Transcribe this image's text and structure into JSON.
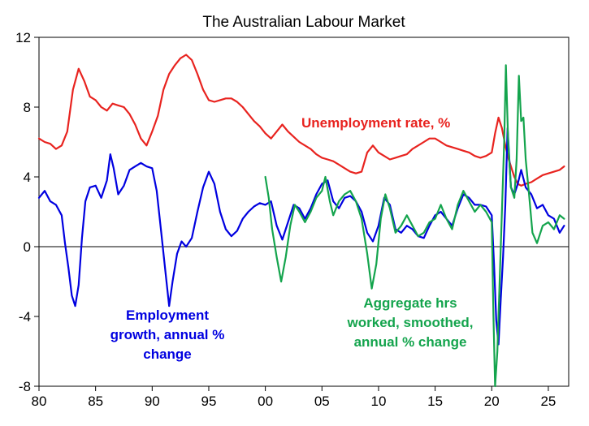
{
  "chart_data": {
    "type": "line",
    "title": "The Australian Labour Market",
    "xlabel": "",
    "ylabel": "",
    "xlim": [
      1980,
      2026.8
    ],
    "ylim": [
      -8,
      12
    ],
    "x_ticks": [
      "80",
      "85",
      "90",
      "95",
      "00",
      "05",
      "10",
      "15",
      "20",
      "25"
    ],
    "x_tick_values": [
      1980,
      1985,
      1990,
      1995,
      2000,
      2005,
      2010,
      2015,
      2020,
      2025
    ],
    "y_ticks": [
      "12",
      "8",
      "4",
      "0",
      "-4",
      "-8"
    ],
    "y_tick_values": [
      12,
      8,
      4,
      0,
      -4,
      -8
    ],
    "grid": false,
    "annotations": {
      "unemployment": "Unemployment rate, %",
      "employment_1": "Employment",
      "employment_2": "growth, annual %",
      "employment_3": "change",
      "hours_1": "Aggregate hrs",
      "hours_2": "worked, smoothed,",
      "hours_3": "annual % change"
    },
    "series": [
      {
        "key": "unemployment",
        "color": "#e8231f",
        "points": [
          [
            1980,
            6.2
          ],
          [
            1980.5,
            6.0
          ],
          [
            1981,
            5.9
          ],
          [
            1981.5,
            5.6
          ],
          [
            1982,
            5.8
          ],
          [
            1982.5,
            6.6
          ],
          [
            1983,
            9.0
          ],
          [
            1983.5,
            10.2
          ],
          [
            1984,
            9.5
          ],
          [
            1984.5,
            8.6
          ],
          [
            1985,
            8.4
          ],
          [
            1985.5,
            8.0
          ],
          [
            1986,
            7.8
          ],
          [
            1986.5,
            8.2
          ],
          [
            1987,
            8.1
          ],
          [
            1987.5,
            8.0
          ],
          [
            1988,
            7.6
          ],
          [
            1988.5,
            7.0
          ],
          [
            1989,
            6.2
          ],
          [
            1989.5,
            5.8
          ],
          [
            1990,
            6.6
          ],
          [
            1990.5,
            7.5
          ],
          [
            1991,
            9.0
          ],
          [
            1991.5,
            9.9
          ],
          [
            1992,
            10.4
          ],
          [
            1992.5,
            10.8
          ],
          [
            1993,
            11.0
          ],
          [
            1993.5,
            10.7
          ],
          [
            1994,
            9.9
          ],
          [
            1994.5,
            9.0
          ],
          [
            1995,
            8.4
          ],
          [
            1995.5,
            8.3
          ],
          [
            1996,
            8.4
          ],
          [
            1996.5,
            8.5
          ],
          [
            1997,
            8.5
          ],
          [
            1997.5,
            8.3
          ],
          [
            1998,
            8.0
          ],
          [
            1998.5,
            7.6
          ],
          [
            1999,
            7.2
          ],
          [
            1999.5,
            6.9
          ],
          [
            2000,
            6.5
          ],
          [
            2000.5,
            6.2
          ],
          [
            2001,
            6.6
          ],
          [
            2001.5,
            7.0
          ],
          [
            2002,
            6.6
          ],
          [
            2002.5,
            6.3
          ],
          [
            2003,
            6.0
          ],
          [
            2003.5,
            5.8
          ],
          [
            2004,
            5.6
          ],
          [
            2004.5,
            5.3
          ],
          [
            2005,
            5.1
          ],
          [
            2005.5,
            5.0
          ],
          [
            2006,
            4.9
          ],
          [
            2006.5,
            4.7
          ],
          [
            2007,
            4.5
          ],
          [
            2007.5,
            4.3
          ],
          [
            2008,
            4.2
          ],
          [
            2008.5,
            4.3
          ],
          [
            2009,
            5.4
          ],
          [
            2009.5,
            5.8
          ],
          [
            2010,
            5.4
          ],
          [
            2010.5,
            5.2
          ],
          [
            2011,
            5.0
          ],
          [
            2011.5,
            5.1
          ],
          [
            2012,
            5.2
          ],
          [
            2012.5,
            5.3
          ],
          [
            2013,
            5.6
          ],
          [
            2013.5,
            5.8
          ],
          [
            2014,
            6.0
          ],
          [
            2014.5,
            6.2
          ],
          [
            2015,
            6.2
          ],
          [
            2015.5,
            6.0
          ],
          [
            2016,
            5.8
          ],
          [
            2016.5,
            5.7
          ],
          [
            2017,
            5.6
          ],
          [
            2017.5,
            5.5
          ],
          [
            2018,
            5.4
          ],
          [
            2018.5,
            5.2
          ],
          [
            2019,
            5.1
          ],
          [
            2019.5,
            5.2
          ],
          [
            2020,
            5.4
          ],
          [
            2020.3,
            6.5
          ],
          [
            2020.6,
            7.4
          ],
          [
            2020.9,
            6.8
          ],
          [
            2021.2,
            5.8
          ],
          [
            2021.5,
            5.0
          ],
          [
            2021.8,
            4.4
          ],
          [
            2022,
            4.0
          ],
          [
            2022.3,
            3.6
          ],
          [
            2022.6,
            3.5
          ],
          [
            2023,
            3.6
          ],
          [
            2023.5,
            3.7
          ],
          [
            2024,
            3.9
          ],
          [
            2024.5,
            4.1
          ],
          [
            2025,
            4.2
          ],
          [
            2025.5,
            4.3
          ],
          [
            2026,
            4.4
          ],
          [
            2026.4,
            4.6
          ]
        ]
      },
      {
        "key": "employment",
        "color": "#0000e0",
        "points": [
          [
            1980,
            2.8
          ],
          [
            1980.5,
            3.2
          ],
          [
            1981,
            2.6
          ],
          [
            1981.5,
            2.4
          ],
          [
            1982,
            1.8
          ],
          [
            1982.3,
            0.2
          ],
          [
            1982.6,
            -1.2
          ],
          [
            1982.9,
            -2.8
          ],
          [
            1983.2,
            -3.4
          ],
          [
            1983.5,
            -2.2
          ],
          [
            1983.8,
            0.5
          ],
          [
            1984.1,
            2.6
          ],
          [
            1984.5,
            3.4
          ],
          [
            1985,
            3.5
          ],
          [
            1985.5,
            2.8
          ],
          [
            1986,
            3.8
          ],
          [
            1986.3,
            5.3
          ],
          [
            1986.6,
            4.5
          ],
          [
            1987,
            3.0
          ],
          [
            1987.5,
            3.5
          ],
          [
            1988,
            4.4
          ],
          [
            1988.5,
            4.6
          ],
          [
            1989,
            4.8
          ],
          [
            1989.5,
            4.6
          ],
          [
            1990,
            4.5
          ],
          [
            1990.4,
            3.2
          ],
          [
            1990.8,
            0.8
          ],
          [
            1991.2,
            -1.6
          ],
          [
            1991.5,
            -3.4
          ],
          [
            1991.8,
            -2.0
          ],
          [
            1992.2,
            -0.4
          ],
          [
            1992.6,
            0.3
          ],
          [
            1993,
            0.0
          ],
          [
            1993.5,
            0.5
          ],
          [
            1994,
            2.0
          ],
          [
            1994.5,
            3.4
          ],
          [
            1995,
            4.3
          ],
          [
            1995.5,
            3.6
          ],
          [
            1996,
            2.0
          ],
          [
            1996.5,
            1.0
          ],
          [
            1997,
            0.6
          ],
          [
            1997.5,
            0.9
          ],
          [
            1998,
            1.6
          ],
          [
            1998.5,
            2.0
          ],
          [
            1999,
            2.3
          ],
          [
            1999.5,
            2.5
          ],
          [
            2000,
            2.4
          ],
          [
            2000.5,
            2.6
          ],
          [
            2001,
            1.2
          ],
          [
            2001.5,
            0.4
          ],
          [
            2002,
            1.4
          ],
          [
            2002.5,
            2.4
          ],
          [
            2003,
            2.2
          ],
          [
            2003.5,
            1.6
          ],
          [
            2004,
            2.2
          ],
          [
            2004.5,
            3.0
          ],
          [
            2005,
            3.6
          ],
          [
            2005.5,
            3.8
          ],
          [
            2006,
            2.6
          ],
          [
            2006.5,
            2.2
          ],
          [
            2007,
            2.8
          ],
          [
            2007.5,
            2.9
          ],
          [
            2008,
            2.6
          ],
          [
            2008.5,
            2.0
          ],
          [
            2009,
            0.8
          ],
          [
            2009.5,
            0.3
          ],
          [
            2010,
            1.2
          ],
          [
            2010.5,
            2.8
          ],
          [
            2011,
            2.4
          ],
          [
            2011.5,
            1.0
          ],
          [
            2012,
            0.8
          ],
          [
            2012.5,
            1.2
          ],
          [
            2013,
            1.0
          ],
          [
            2013.5,
            0.6
          ],
          [
            2014,
            0.5
          ],
          [
            2014.5,
            1.2
          ],
          [
            2015,
            1.8
          ],
          [
            2015.5,
            2.0
          ],
          [
            2016,
            1.6
          ],
          [
            2016.5,
            1.2
          ],
          [
            2017,
            2.2
          ],
          [
            2017.5,
            3.0
          ],
          [
            2018,
            2.8
          ],
          [
            2018.5,
            2.4
          ],
          [
            2019,
            2.4
          ],
          [
            2019.5,
            2.3
          ],
          [
            2020,
            1.8
          ],
          [
            2020.2,
            -1.0
          ],
          [
            2020.4,
            -4.2
          ],
          [
            2020.6,
            -5.6
          ],
          [
            2020.8,
            -3.0
          ],
          [
            2021.0,
            -0.6
          ],
          [
            2021.2,
            2.4
          ],
          [
            2021.4,
            6.8
          ],
          [
            2021.7,
            3.4
          ],
          [
            2022,
            3.0
          ],
          [
            2022.3,
            3.6
          ],
          [
            2022.6,
            4.4
          ],
          [
            2023,
            3.4
          ],
          [
            2023.5,
            3.0
          ],
          [
            2024,
            2.2
          ],
          [
            2024.5,
            2.4
          ],
          [
            2025,
            1.8
          ],
          [
            2025.5,
            1.6
          ],
          [
            2026,
            0.8
          ],
          [
            2026.4,
            1.2
          ]
        ]
      },
      {
        "key": "hours",
        "color": "#14a44d",
        "points": [
          [
            2000,
            4.0
          ],
          [
            2000.3,
            2.8
          ],
          [
            2000.6,
            1.0
          ],
          [
            2001,
            -0.6
          ],
          [
            2001.4,
            -2.0
          ],
          [
            2001.8,
            -0.6
          ],
          [
            2002.2,
            1.2
          ],
          [
            2002.6,
            2.4
          ],
          [
            2003,
            2.0
          ],
          [
            2003.5,
            1.4
          ],
          [
            2004,
            2.0
          ],
          [
            2004.5,
            2.8
          ],
          [
            2005,
            3.2
          ],
          [
            2005.3,
            4.0
          ],
          [
            2005.7,
            2.6
          ],
          [
            2006,
            1.8
          ],
          [
            2006.5,
            2.6
          ],
          [
            2007,
            3.0
          ],
          [
            2007.5,
            3.2
          ],
          [
            2008,
            2.6
          ],
          [
            2008.5,
            1.6
          ],
          [
            2009,
            -0.4
          ],
          [
            2009.4,
            -2.4
          ],
          [
            2009.8,
            -1.0
          ],
          [
            2010.2,
            1.6
          ],
          [
            2010.6,
            3.0
          ],
          [
            2011,
            2.2
          ],
          [
            2011.5,
            0.8
          ],
          [
            2012,
            1.2
          ],
          [
            2012.5,
            1.8
          ],
          [
            2013,
            1.2
          ],
          [
            2013.5,
            0.6
          ],
          [
            2014,
            0.8
          ],
          [
            2014.5,
            1.4
          ],
          [
            2015,
            1.6
          ],
          [
            2015.5,
            2.4
          ],
          [
            2016,
            1.6
          ],
          [
            2016.5,
            1.0
          ],
          [
            2017,
            2.4
          ],
          [
            2017.5,
            3.2
          ],
          [
            2018,
            2.6
          ],
          [
            2018.5,
            2.0
          ],
          [
            2019,
            2.4
          ],
          [
            2019.5,
            2.0
          ],
          [
            2020,
            1.4
          ],
          [
            2020.15,
            -4.0
          ],
          [
            2020.3,
            -8.0
          ],
          [
            2020.5,
            -6.0
          ],
          [
            2020.7,
            -2.0
          ],
          [
            2020.9,
            2.0
          ],
          [
            2021.1,
            6.0
          ],
          [
            2021.25,
            10.4
          ],
          [
            2021.45,
            6.0
          ],
          [
            2021.7,
            3.4
          ],
          [
            2022,
            2.8
          ],
          [
            2022.2,
            5.0
          ],
          [
            2022.4,
            9.8
          ],
          [
            2022.6,
            7.2
          ],
          [
            2022.8,
            7.4
          ],
          [
            2023,
            5.0
          ],
          [
            2023.3,
            3.0
          ],
          [
            2023.6,
            0.8
          ],
          [
            2024,
            0.2
          ],
          [
            2024.5,
            1.2
          ],
          [
            2025,
            1.4
          ],
          [
            2025.5,
            1.0
          ],
          [
            2026,
            1.8
          ],
          [
            2026.4,
            1.6
          ]
        ]
      }
    ]
  }
}
